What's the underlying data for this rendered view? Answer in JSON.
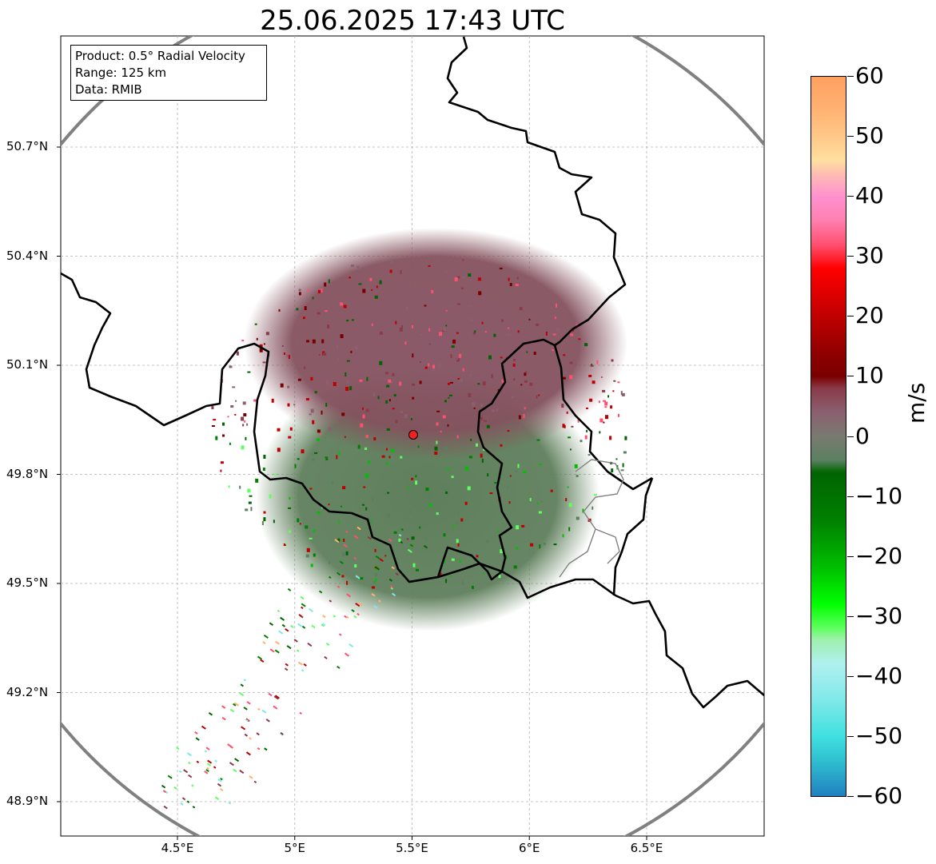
{
  "title": "25.06.2025 17:43 UTC",
  "info_box": {
    "product": "Product: 0.5° Radial Velocity",
    "range": "Range: 125 km",
    "data": "Data: RMIB"
  },
  "axes": {
    "lat_labels": [
      "50.7°N",
      "50.4°N",
      "50.1°N",
      "49.8°N",
      "49.5°N",
      "49.2°N",
      "48.9°N"
    ],
    "lat_values": [
      50.7,
      50.4,
      50.1,
      49.8,
      49.5,
      49.2,
      48.9
    ],
    "lon_labels": [
      "4.5°E",
      "5°E",
      "5.5°E",
      "6°E",
      "6.5°E"
    ],
    "lon_values": [
      4.5,
      5.0,
      5.5,
      6.0,
      6.5
    ],
    "lon_range": [
      4.0,
      7.0
    ],
    "lat_range": [
      48.8,
      50.98
    ],
    "grid": true
  },
  "radar": {
    "center_lon": 5.505,
    "center_lat": 49.915,
    "range_km": 125
  },
  "colorbar": {
    "unit": "m/s",
    "min": -60,
    "max": 60,
    "tick_labels": [
      "60",
      "50",
      "40",
      "30",
      "20",
      "10",
      "0",
      "−10",
      "−20",
      "−30",
      "−40",
      "−50",
      "−60"
    ],
    "tick_values": [
      60,
      50,
      40,
      30,
      20,
      10,
      0,
      -10,
      -20,
      -30,
      -40,
      -50,
      -60
    ],
    "stops": [
      {
        "v": 60,
        "c": "#ffa060"
      },
      {
        "v": 55,
        "c": "#ffb070"
      },
      {
        "v": 50,
        "c": "#ffc888"
      },
      {
        "v": 46,
        "c": "#ffe0a0"
      },
      {
        "v": 44,
        "c": "#ffc0b0"
      },
      {
        "v": 40,
        "c": "#ff90d0"
      },
      {
        "v": 36,
        "c": "#ff80b0"
      },
      {
        "v": 32,
        "c": "#ff5070"
      },
      {
        "v": 28,
        "c": "#ff0000"
      },
      {
        "v": 20,
        "c": "#c00000"
      },
      {
        "v": 14,
        "c": "#900000"
      },
      {
        "v": 10,
        "c": "#7a0000"
      },
      {
        "v": 8,
        "c": "#8a3a48"
      },
      {
        "v": 4,
        "c": "#8a6070"
      },
      {
        "v": 0,
        "c": "#7a7a70"
      },
      {
        "v": -4,
        "c": "#5a8060"
      },
      {
        "v": -6,
        "c": "#006400"
      },
      {
        "v": -14,
        "c": "#008000"
      },
      {
        "v": -22,
        "c": "#00c000"
      },
      {
        "v": -28,
        "c": "#00ff00"
      },
      {
        "v": -32,
        "c": "#60ff60"
      },
      {
        "v": -34,
        "c": "#a0f0b0"
      },
      {
        "v": -38,
        "c": "#b0f0f0"
      },
      {
        "v": -44,
        "c": "#80e8e8"
      },
      {
        "v": -50,
        "c": "#40e0e0"
      },
      {
        "v": -54,
        "c": "#30c0d0"
      },
      {
        "v": -60,
        "c": "#2080c0"
      }
    ]
  },
  "colors": {
    "border": "#000000",
    "range_ring": "#808080",
    "radar_marker": "#ee2222",
    "inbound_base": "#5a8060",
    "outbound_base": "#8a5868"
  }
}
